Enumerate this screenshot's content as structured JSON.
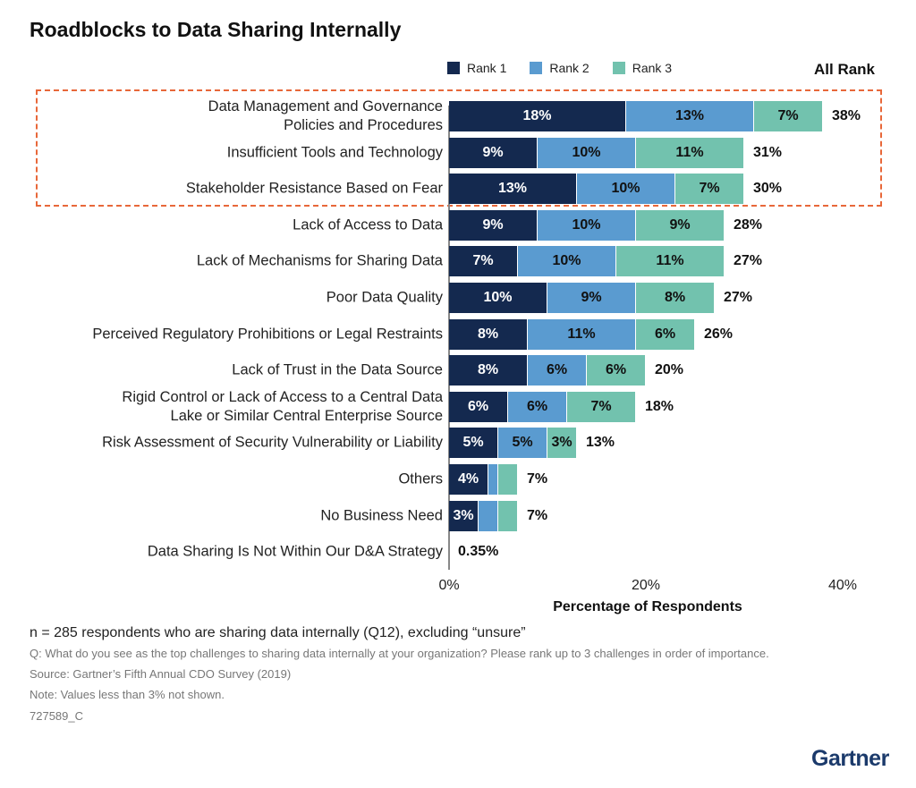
{
  "chart_data": {
    "type": "bar",
    "orientation": "horizontal",
    "stacked": true,
    "title": "Roadblocks to Data Sharing Internally",
    "xlabel": "Percentage of Respondents",
    "xlim": [
      0,
      40
    ],
    "xticks": [
      "0%",
      "20%",
      "40%"
    ],
    "legend_position": "top",
    "total_header": "All Rank",
    "categories": [
      "Data Management and Governance\nPolicies and Procedures",
      "Insufficient Tools and Technology",
      "Stakeholder Resistance Based on Fear",
      "Lack of Access to Data",
      "Lack of Mechanisms for Sharing Data",
      "Poor Data Quality",
      "Perceived Regulatory Prohibitions or Legal Restraints",
      "Lack of Trust in the Data Source",
      "Rigid Control or Lack of Access to a Central Data\nLake or Similar Central Enterprise Source",
      "Risk Assessment of Security Vulnerability or Liability",
      "Others",
      "No Business Need",
      "Data Sharing Is Not Within Our D&A Strategy"
    ],
    "series": [
      {
        "name": "Rank 1",
        "color": "#14294f",
        "values": [
          18,
          9,
          13,
          9,
          7,
          10,
          8,
          8,
          6,
          5,
          4,
          3,
          0
        ]
      },
      {
        "name": "Rank 2",
        "color": "#5a9bd0",
        "values": [
          13,
          10,
          10,
          10,
          10,
          9,
          11,
          6,
          6,
          5,
          1,
          2,
          0
        ]
      },
      {
        "name": "Rank 3",
        "color": "#72c2ae",
        "values": [
          7,
          11,
          7,
          9,
          11,
          8,
          6,
          6,
          7,
          3,
          2,
          2,
          0
        ]
      }
    ],
    "totals": [
      "38%",
      "31%",
      "30%",
      "28%",
      "27%",
      "27%",
      "26%",
      "20%",
      "18%",
      "13%",
      "7%",
      "7%",
      "0.35%"
    ],
    "label_threshold": 3,
    "highlighted_rows": [
      0,
      1,
      2
    ],
    "highlight_color": "#e8683a"
  },
  "footnotes": {
    "n": "n = 285 respondents who are sharing data internally (Q12), excluding “unsure”",
    "question": "Q: What do you see as the top challenges to sharing data internally at your organization? Please rank up to 3 challenges in order of importance.",
    "source": "Source: Gartner’s Fifth Annual CDO Survey (2019)",
    "note": "Note: Values less than 3% not shown.",
    "id": "727589_C"
  },
  "logo": "Gartner"
}
